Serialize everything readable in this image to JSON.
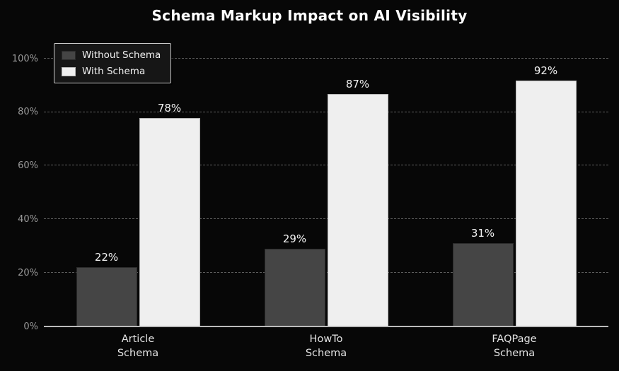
{
  "chart_data": {
    "type": "bar",
    "title": "Schema Markup Impact on AI Visibility",
    "categories": [
      "Article\nSchema",
      "HowTo\nSchema",
      "FAQPage\nSchema"
    ],
    "series": [
      {
        "name": "Without Schema",
        "values": [
          22,
          29,
          31
        ],
        "color": "#454545",
        "edge": "#2a2a2a"
      },
      {
        "name": "With Schema",
        "values": [
          78,
          87,
          92
        ],
        "color": "#efefef",
        "edge": "#b5b5b5"
      }
    ],
    "ylim": [
      0,
      100
    ],
    "yticks": [
      0,
      20,
      40,
      60,
      80,
      100
    ],
    "ytick_labels": [
      "0%",
      "20%",
      "40%",
      "60%",
      "80%",
      "100%"
    ],
    "value_suffix": "%",
    "grid": true,
    "grid_style": "dashed",
    "legend_position": "upper-left",
    "background_color": "#070707",
    "text_color": "#f2f2f2",
    "axis_label_color": "#9a9a9a"
  }
}
